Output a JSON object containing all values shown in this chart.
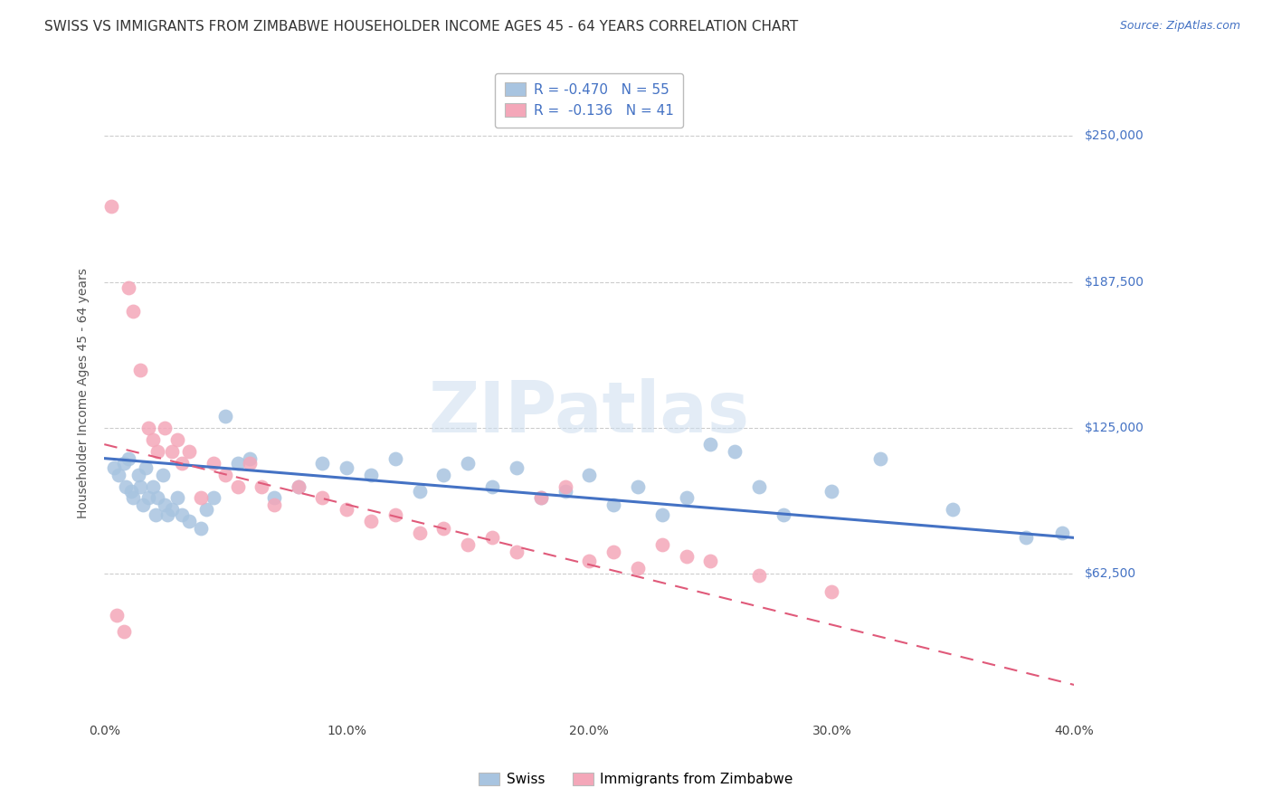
{
  "title": "SWISS VS IMMIGRANTS FROM ZIMBABWE HOUSEHOLDER INCOME AGES 45 - 64 YEARS CORRELATION CHART",
  "source": "Source: ZipAtlas.com",
  "ylabel": "Householder Income Ages 45 - 64 years",
  "xlabel_ticks": [
    "0.0%",
    "10.0%",
    "20.0%",
    "30.0%",
    "40.0%"
  ],
  "xlabel_vals": [
    0.0,
    10.0,
    20.0,
    30.0,
    40.0
  ],
  "ytick_labels": [
    "$62,500",
    "$125,000",
    "$187,500",
    "$250,000"
  ],
  "ytick_vals": [
    62500,
    125000,
    187500,
    250000
  ],
  "xlim": [
    0.0,
    40.0
  ],
  "ylim": [
    0,
    280000
  ],
  "swiss_color": "#a8c4e0",
  "swiss_line_color": "#4472c4",
  "zimb_color": "#f4a7b9",
  "zimb_line_color": "#e05a7a",
  "background_color": "#ffffff",
  "grid_color": "#cccccc",
  "title_color": "#333333",
  "axis_label_color": "#555555",
  "ytick_color": "#4472c4",
  "title_fontsize": 11,
  "source_fontsize": 9,
  "legend1_r": "-0.470",
  "legend1_n": "55",
  "legend2_r": "-0.136",
  "legend2_n": "41",
  "swiss_x": [
    0.4,
    0.6,
    0.8,
    0.9,
    1.0,
    1.1,
    1.2,
    1.4,
    1.5,
    1.6,
    1.7,
    1.8,
    2.0,
    2.1,
    2.2,
    2.4,
    2.5,
    2.6,
    2.8,
    3.0,
    3.2,
    3.5,
    4.0,
    4.2,
    4.5,
    5.0,
    5.5,
    6.0,
    7.0,
    8.0,
    9.0,
    10.0,
    11.0,
    12.0,
    13.0,
    14.0,
    15.0,
    16.0,
    17.0,
    18.0,
    19.0,
    20.0,
    21.0,
    22.0,
    23.0,
    24.0,
    25.0,
    26.0,
    27.0,
    28.0,
    30.0,
    32.0,
    35.0,
    38.0,
    39.5
  ],
  "swiss_y": [
    108000,
    105000,
    110000,
    100000,
    112000,
    98000,
    95000,
    105000,
    100000,
    92000,
    108000,
    95000,
    100000,
    88000,
    95000,
    105000,
    92000,
    88000,
    90000,
    95000,
    88000,
    85000,
    82000,
    90000,
    95000,
    130000,
    110000,
    112000,
    95000,
    100000,
    110000,
    108000,
    105000,
    112000,
    98000,
    105000,
    110000,
    100000,
    108000,
    95000,
    98000,
    105000,
    92000,
    100000,
    88000,
    95000,
    118000,
    115000,
    100000,
    88000,
    98000,
    112000,
    90000,
    78000,
    80000
  ],
  "zimb_x": [
    0.3,
    0.5,
    0.8,
    1.0,
    1.2,
    1.5,
    1.8,
    2.0,
    2.2,
    2.5,
    2.8,
    3.0,
    3.2,
    3.5,
    4.0,
    4.5,
    5.0,
    5.5,
    6.0,
    6.5,
    7.0,
    8.0,
    9.0,
    10.0,
    11.0,
    12.0,
    13.0,
    14.0,
    15.0,
    16.0,
    17.0,
    18.0,
    19.0,
    20.0,
    21.0,
    22.0,
    23.0,
    24.0,
    25.0,
    27.0,
    30.0
  ],
  "zimb_y": [
    220000,
    45000,
    38000,
    185000,
    175000,
    150000,
    125000,
    120000,
    115000,
    125000,
    115000,
    120000,
    110000,
    115000,
    95000,
    110000,
    105000,
    100000,
    110000,
    100000,
    92000,
    100000,
    95000,
    90000,
    85000,
    88000,
    80000,
    82000,
    75000,
    78000,
    72000,
    95000,
    100000,
    68000,
    72000,
    65000,
    75000,
    70000,
    68000,
    62000,
    55000
  ]
}
